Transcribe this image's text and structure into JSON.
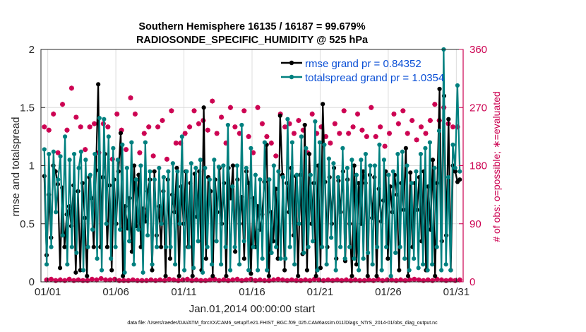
{
  "chart_data": {
    "type": "line",
    "title": "Southern Hemisphere 16135 / 16187 = 99.679%",
    "subtitle": "RADIOSONDE_SPECIFIC_HUMIDITY @ 525 hPa",
    "xlabel": "Jan.01,2014 00:00:00 start",
    "ylabel": "rmse and totalspread",
    "y2label": "# of obs: o=possible; ∗=evaluated",
    "footnote": "data file: /Users/raeder/DAI/ATM_forcXX/CAM6_setup/f.e21.FHIST_BGC.f09_025.CAM6assim.011/Diags_NTrS_2014-01/obs_diag_output.nc",
    "xlim": [
      0.5,
      31.5
    ],
    "ylim": [
      0,
      2
    ],
    "y2lim": [
      0,
      360
    ],
    "x_ticks": [
      1,
      6,
      11,
      16,
      21,
      26,
      31
    ],
    "x_tick_labels": [
      "01/01",
      "01/06",
      "01/11",
      "01/16",
      "01/21",
      "01/26",
      "01/31"
    ],
    "y_ticks": [
      0,
      0.5,
      1,
      1.5,
      2
    ],
    "y_tick_labels": [
      "0",
      "0.5",
      "1",
      "1.5",
      "2"
    ],
    "y2_ticks": [
      0,
      90,
      180,
      270,
      360
    ],
    "y2_tick_labels": [
      "0",
      "90",
      "180",
      "270",
      "360"
    ],
    "grid": true,
    "legend_position": "top-right",
    "colors": {
      "rmse": "#000000",
      "totalspread": "#00807f",
      "obs": "#cc0050",
      "legend_text": "#0a4fd6"
    },
    "series": [
      {
        "name": "rmse grand pr = 0.84352",
        "color": "#000000",
        "values": [
          0.91,
          0.23,
          0.75,
          0.38,
          1.0,
          0.95,
          0.84,
          0.12,
          0.81,
          0.3,
          0.58,
          0.65,
          0.48,
          0.83,
          0.08,
          0.78,
          0.1,
          0.85,
          0.55,
          0.05,
          0.9,
          0.72,
          0.3,
          0.96,
          1.7,
          0.3,
          0.9,
          1.1,
          0.3,
          0.83,
          0.1,
          0.88,
          0.5,
          0.95,
          1.28,
          0.05,
          0.65,
          0.46,
          0.72,
          0.26,
          1.0,
          0.48,
          0.92,
          0.3,
          0.63,
          0.52,
          0.78,
          0.88,
          0.1,
          0.95,
          0.4,
          0.65,
          0.3,
          0.78,
          0.05,
          0.88,
          0.2,
          0.75,
          0.6,
          0.98,
          0.05,
          0.82,
          0.5,
          0.95,
          0.3,
          0.85,
          0.05,
          0.93,
          0.56,
          0.95,
          0.1,
          1.5,
          0.2,
          0.9,
          0.78,
          0.05,
          0.88,
          0.6,
          0.98,
          0.5,
          0.85,
          0.05,
          0.98,
          0.72,
          1.0,
          0.26,
          0.88,
          0.5,
          0.73,
          0.2,
          0.95,
          0.85,
          0.07,
          0.72,
          0.3,
          0.65,
          0.45,
          0.58,
          0.86,
          1.18,
          0.05,
          0.6,
          0.35,
          0.8,
          0.2,
          1.43,
          0.92,
          0.1,
          0.85,
          0.6,
          0.98,
          0.4,
          0.91,
          0.05,
          0.92,
          0.24,
          1.35,
          0.1,
          1.1,
          0.5,
          0.85,
          0.05,
          1.0,
          0.12,
          1.53,
          0.86,
          0.3,
          0.9,
          0.5,
          0.98,
          0.2,
          0.87,
          0.6,
          0.95,
          0.18,
          0.88,
          0.5,
          0.05,
          1.0,
          0.15,
          0.85,
          0.5,
          0.95,
          0.85,
          0.05,
          0.92,
          0.55,
          0.9,
          0.05,
          0.8,
          0.52,
          0.7,
          0.95,
          0.2,
          0.82,
          0.6,
          0.92,
          0.75,
          0.1,
          0.85,
          0.62,
          1.15,
          0.05,
          0.94,
          0.3,
          0.85,
          0.62,
          0.9,
          0.35,
          0.95,
          0.1,
          0.82,
          0.45,
          1.05,
          0.05,
          0.85,
          1.66,
          0.35,
          1.6,
          0.4,
          1.4,
          0.1,
          1.0,
          0.95,
          0.86,
          0.88
        ]
      },
      {
        "name": "totalspread grand pr = 1.0354",
        "color": "#00807f",
        "values": [
          1.14,
          0.15,
          1.1,
          0.3,
          1.12,
          0.6,
          0.88,
          1.08,
          0.4,
          1.25,
          0.15,
          1.05,
          0.3,
          1.1,
          0.25,
          0.98,
          1.12,
          0.1,
          1.05,
          0.3,
          0.92,
          0.45,
          1.1,
          0.2,
          1.41,
          0.1,
          1.4,
          0.5,
          1.25,
          0.2,
          1.15,
          0.3,
          1.05,
          0.45,
          1.18,
          0.08,
          0.98,
          0.35,
          1.2,
          0.15,
          0.88,
          0.45,
          1.0,
          0.08,
          1.2,
          0.4,
          0.95,
          0.15,
          0.88,
          0.3,
          0.98,
          0.5,
          0.9,
          0.3,
          0.95,
          0.3,
          1.02,
          0.15,
          0.95,
          0.5,
          1.25,
          0.1,
          0.95,
          0.3,
          1.02,
          0.12,
          0.98,
          0.35,
          1.05,
          0.08,
          0.98,
          0.3,
          0.88,
          0.15,
          1.05,
          0.35,
          0.99,
          0.15,
          1.0,
          0.3,
          1.35,
          0.1,
          0.82,
          0.3,
          1.0,
          0.15,
          1.35,
          0.35,
          0.98,
          0.1,
          1.15,
          0.3,
          0.92,
          0.1,
          0.88,
          0.2,
          1.2,
          0.1,
          0.88,
          0.25,
          1.0,
          0.3,
          0.95,
          0.2,
          0.9,
          0.2,
          1.4,
          0.3,
          1.2,
          0.15,
          0.92,
          0.5,
          1.25,
          0.25,
          1.15,
          0.3,
          0.92,
          0.35,
          1.38,
          0.1,
          1.2,
          0.3,
          1.18,
          0.15,
          1.06,
          0.38,
          1.02,
          0.1,
          0.9,
          0.3,
          1.15,
          0.2,
          0.98,
          0.3,
          1.05,
          0.2,
          0.92,
          0.1,
          1.05,
          0.2,
          1.1,
          0.25,
          1.0,
          0.15,
          1.0,
          0.3,
          1.18,
          0.1,
          1.05,
          0.3,
          0.92,
          0.05,
          0.95,
          0.25,
          1.1,
          0.3,
          1.12,
          0.2,
          1.0,
          0.1,
          0.85,
          0.2,
          0.95,
          0.12,
          1.1,
          0.15,
          1.15,
          0.1,
          1.2,
          0.15,
          0.98,
          0.3,
          1.3,
          0.1,
          2.0,
          0.15,
          0.9,
          0.1,
          1.18,
          0.98,
          1.69,
          0.95
        ]
      },
      {
        "name": "# of obs possible",
        "color": "#cc0050",
        "marker": "o",
        "axis": "right",
        "values": [
          240,
          3,
          235,
          4,
          260,
          2,
          200,
          3,
          275,
          2,
          235,
          4,
          300,
          2,
          255,
          3,
          240,
          2,
          205,
          2,
          240,
          4,
          245,
          3,
          200,
          5,
          245,
          3,
          240,
          3,
          190,
          4,
          260,
          2,
          235,
          2,
          205,
          2,
          285,
          3,
          260,
          2,
          200,
          2,
          230,
          2,
          240,
          3,
          195,
          2,
          240,
          3,
          250,
          2,
          190,
          4,
          265,
          3,
          215,
          2,
          215,
          3,
          230,
          4,
          240,
          2,
          265,
          3,
          245,
          2,
          250,
          2,
          235,
          3,
          280,
          4,
          230,
          2,
          255,
          3,
          215,
          2,
          270,
          3,
          240,
          4,
          230,
          2,
          265,
          3,
          225,
          4,
          200,
          2,
          270,
          3,
          245,
          2,
          225,
          2,
          215,
          3,
          195,
          4,
          260,
          3,
          240,
          2,
          245,
          3,
          230,
          2,
          250,
          2,
          235,
          3,
          200,
          2,
          260,
          4,
          230,
          3,
          240,
          2,
          225,
          3,
          215,
          2,
          245,
          3,
          230,
          2,
          265,
          3,
          230,
          2,
          240,
          3,
          260,
          2,
          235,
          2,
          225,
          3,
          270,
          2,
          225,
          4,
          240,
          2,
          210,
          3,
          230,
          3,
          260,
          2,
          245,
          3,
          265,
          2,
          230,
          3,
          250,
          4,
          220,
          3,
          240,
          2,
          230,
          3,
          250,
          2,
          275,
          4,
          250,
          3,
          270,
          2,
          245,
          3,
          240,
          2,
          240,
          3
        ]
      },
      {
        "name": "# of obs evaluated",
        "color": "#cc0050",
        "marker": "*",
        "axis": "right",
        "values": [
          240,
          3,
          235,
          4,
          260,
          2,
          200,
          3,
          275,
          2,
          235,
          4,
          300,
          2,
          255,
          3,
          240,
          2,
          205,
          2,
          240,
          4,
          245,
          3,
          200,
          5,
          245,
          3,
          240,
          3,
          190,
          4,
          260,
          2,
          235,
          2,
          205,
          2,
          285,
          3,
          260,
          2,
          200,
          2,
          230,
          2,
          240,
          3,
          195,
          2,
          240,
          3,
          250,
          2,
          190,
          4,
          265,
          3,
          215,
          2,
          215,
          3,
          230,
          4,
          240,
          2,
          265,
          3,
          245,
          2,
          250,
          2,
          235,
          3,
          280,
          4,
          230,
          2,
          255,
          3,
          215,
          2,
          270,
          3,
          240,
          4,
          230,
          2,
          265,
          3,
          225,
          4,
          200,
          2,
          270,
          3,
          245,
          2,
          225,
          2,
          215,
          3,
          195,
          4,
          260,
          3,
          240,
          2,
          245,
          3,
          230,
          2,
          250,
          2,
          235,
          3,
          200,
          2,
          260,
          4,
          230,
          3,
          240,
          2,
          225,
          3,
          215,
          2,
          245,
          3,
          230,
          2,
          265,
          3,
          230,
          2,
          240,
          3,
          260,
          2,
          235,
          2,
          225,
          3,
          270,
          2,
          225,
          4,
          240,
          2,
          210,
          3,
          230,
          3,
          260,
          2,
          245,
          3,
          265,
          2,
          230,
          3,
          250,
          4,
          220,
          3,
          240,
          2,
          230,
          3,
          250,
          2,
          275,
          4,
          250,
          3,
          270,
          2,
          245,
          3,
          240,
          2,
          240,
          3
        ]
      }
    ]
  }
}
